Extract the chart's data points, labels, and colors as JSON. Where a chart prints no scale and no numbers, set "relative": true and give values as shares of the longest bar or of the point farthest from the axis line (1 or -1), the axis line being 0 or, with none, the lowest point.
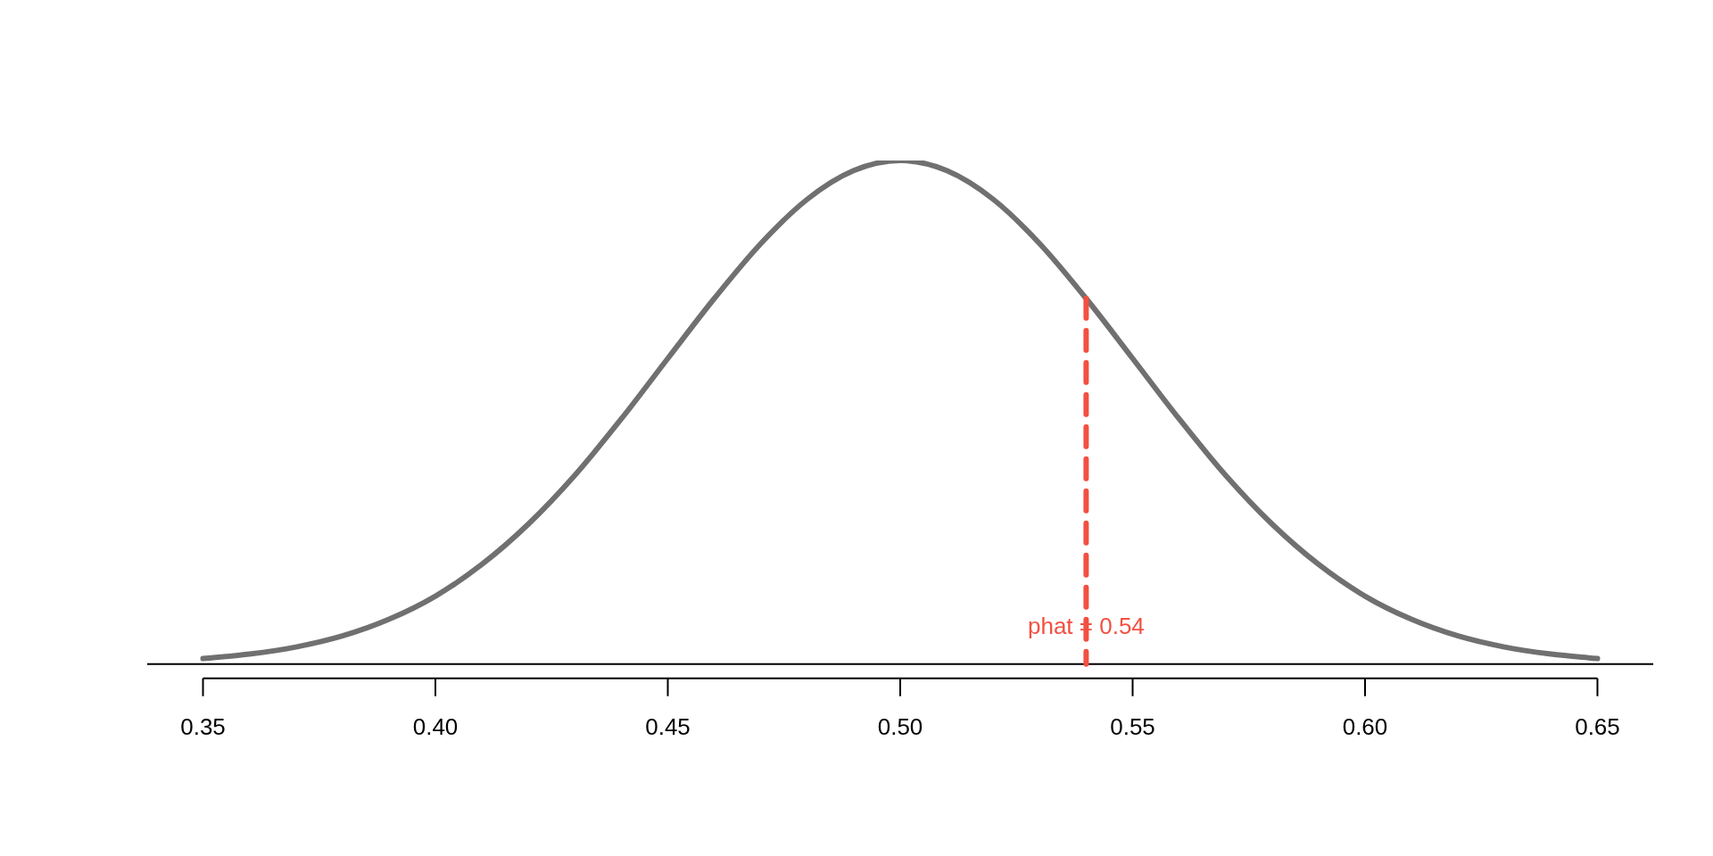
{
  "chart_data": {
    "type": "line",
    "relative": true,
    "x": [
      0.35,
      0.36,
      0.37,
      0.38,
      0.39,
      0.4,
      0.41,
      0.42,
      0.43,
      0.44,
      0.45,
      0.46,
      0.47,
      0.48,
      0.49,
      0.5,
      0.51,
      0.52,
      0.53,
      0.54,
      0.55,
      0.56,
      0.57,
      0.58,
      0.59,
      0.6,
      0.61,
      0.62,
      0.63,
      0.64,
      0.65
    ],
    "series": [
      {
        "color": "#707070",
        "values": [
          0.011,
          0.02,
          0.034,
          0.056,
          0.089,
          0.135,
          0.198,
          0.278,
          0.375,
          0.487,
          0.607,
          0.726,
          0.835,
          0.923,
          0.98,
          1,
          0.98,
          0.923,
          0.835,
          0.726,
          0.607,
          0.487,
          0.375,
          0.278,
          0.198,
          0.135,
          0.089,
          0.056,
          0.034,
          0.02,
          0.011
        ]
      }
    ],
    "xlim": [
      0.338,
      0.662
    ],
    "xticks": [
      {
        "value": 0.35,
        "label": "0.35"
      },
      {
        "value": 0.4,
        "label": "0.40"
      },
      {
        "value": 0.45,
        "label": "0.45"
      },
      {
        "value": 0.5,
        "label": "0.50"
      },
      {
        "value": 0.55,
        "label": "0.55"
      },
      {
        "value": 0.6,
        "label": "0.60"
      },
      {
        "value": 0.65,
        "label": "0.65"
      }
    ],
    "ref_lines": [
      {
        "axis": "x",
        "value": 0.54,
        "label": "phat = 0.54",
        "color": "#f25041",
        "line_style": "dashed"
      }
    ],
    "grid": false,
    "legend": false,
    "marker": "none",
    "line_style": "solid"
  }
}
